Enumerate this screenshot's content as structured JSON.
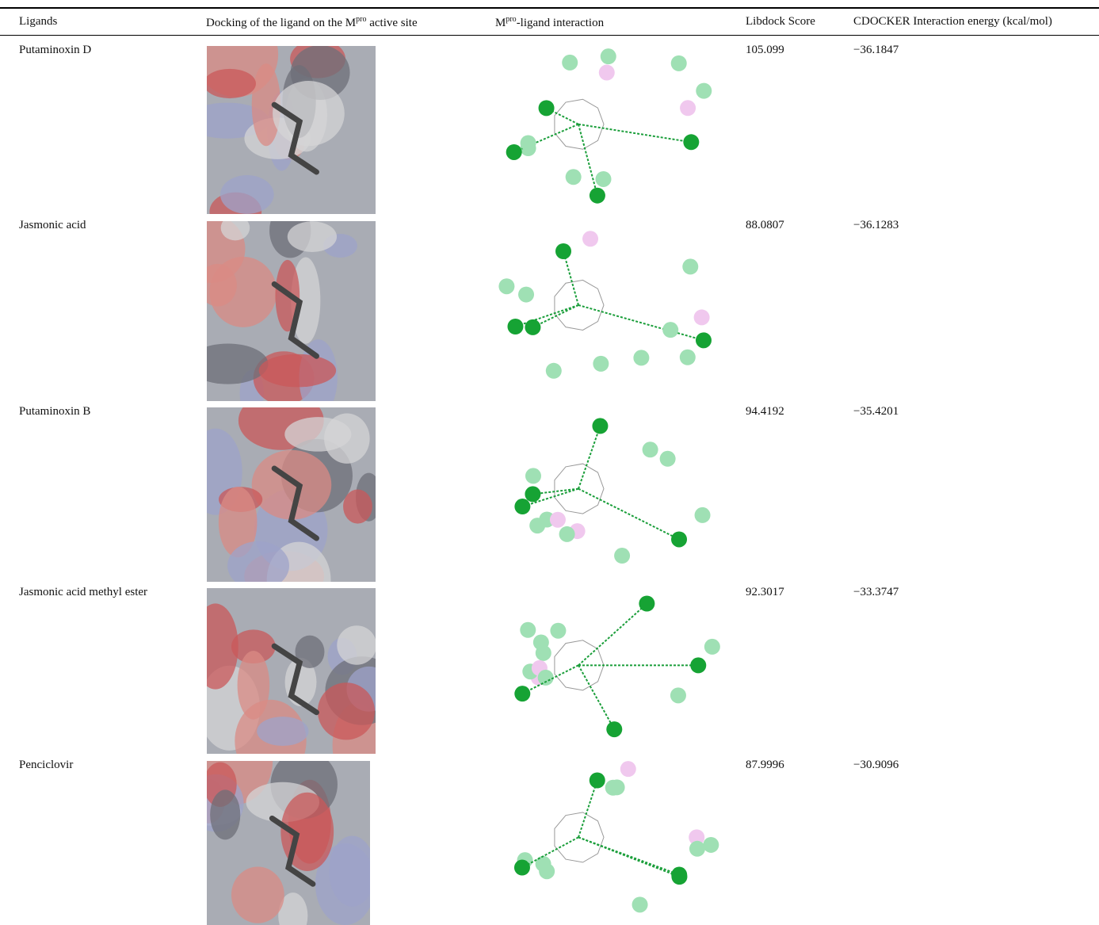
{
  "table": {
    "headers": [
      "Ligands",
      [
        "Docking of the ligand on the M",
        "pro",
        " active site"
      ],
      [
        "M",
        "pro",
        "-ligand interaction"
      ],
      "Libdock Score",
      "CDOCKER Interaction energy (kcal/mol)"
    ],
    "rows": [
      [
        "Putaminoxin D",
        "105.099",
        "−36.1847"
      ],
      [
        "Jasmonic acid",
        "88.0807",
        "−36.1283"
      ],
      [
        "Putaminoxin B",
        "94.4192",
        "−35.4201"
      ],
      [
        "Jasmonic acid methyl ester",
        "92.3017",
        "−33.3747"
      ],
      [
        "Penciclovir",
        "87.9996",
        "−30.9096"
      ]
    ]
  }
}
